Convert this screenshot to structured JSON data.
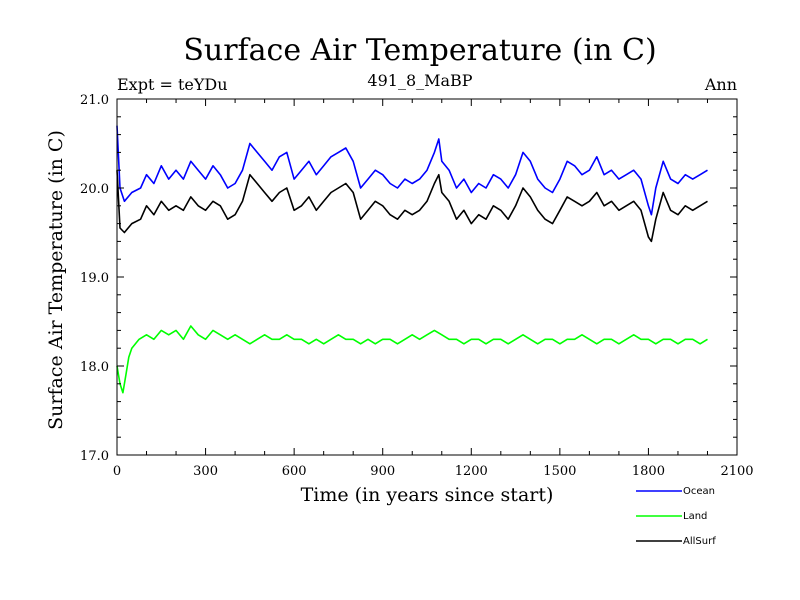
{
  "chart_data": {
    "type": "line",
    "title": "Surface Air Temperature (in C)",
    "subtitle": "491_8_MaBP",
    "left_label": "Expt = teYDu",
    "right_label": "Ann",
    "xlabel": "Time (in years since start)",
    "ylabel": "Surface Air Temperature (in C)",
    "xlim": [
      0,
      2100
    ],
    "ylim": [
      17.0,
      21.0
    ],
    "x_ticks": [
      0,
      300,
      600,
      900,
      1200,
      1500,
      1800,
      2100
    ],
    "x_tick_labels": [
      "0",
      "300",
      "600",
      "900",
      "1200",
      "1500",
      "1800",
      "2100"
    ],
    "y_ticks": [
      17.0,
      18.0,
      19.0,
      20.0,
      21.0
    ],
    "y_tick_labels": [
      "17.0",
      "18.0",
      "19.0",
      "20.0",
      "21.0"
    ],
    "series": [
      {
        "name": "Ocean",
        "color": "#0000ff",
        "x": [
          0,
          10,
          25,
          50,
          80,
          100,
          125,
          150,
          175,
          200,
          225,
          250,
          275,
          300,
          325,
          350,
          375,
          400,
          425,
          450,
          475,
          500,
          525,
          550,
          575,
          600,
          625,
          650,
          675,
          700,
          725,
          750,
          775,
          800,
          825,
          850,
          875,
          900,
          925,
          950,
          975,
          1000,
          1025,
          1050,
          1075,
          1090,
          1100,
          1125,
          1150,
          1175,
          1200,
          1225,
          1250,
          1275,
          1300,
          1325,
          1350,
          1375,
          1400,
          1425,
          1450,
          1475,
          1500,
          1525,
          1550,
          1575,
          1600,
          1625,
          1650,
          1675,
          1700,
          1725,
          1750,
          1775,
          1800,
          1810,
          1825,
          1850,
          1875,
          1900,
          1925,
          1950,
          1975,
          2000
        ],
        "values": [
          20.7,
          20.0,
          19.85,
          19.95,
          20.0,
          20.15,
          20.05,
          20.25,
          20.1,
          20.2,
          20.1,
          20.3,
          20.2,
          20.1,
          20.25,
          20.15,
          20.0,
          20.05,
          20.2,
          20.5,
          20.4,
          20.3,
          20.2,
          20.35,
          20.4,
          20.1,
          20.2,
          20.3,
          20.15,
          20.25,
          20.35,
          20.4,
          20.45,
          20.3,
          20.0,
          20.1,
          20.2,
          20.15,
          20.05,
          20.0,
          20.1,
          20.05,
          20.1,
          20.2,
          20.4,
          20.55,
          20.3,
          20.2,
          20.0,
          20.1,
          19.95,
          20.05,
          20.0,
          20.15,
          20.1,
          20.0,
          20.15,
          20.4,
          20.3,
          20.1,
          20.0,
          19.95,
          20.1,
          20.3,
          20.25,
          20.15,
          20.2,
          20.35,
          20.15,
          20.2,
          20.1,
          20.15,
          20.2,
          20.1,
          19.8,
          19.7,
          20.0,
          20.3,
          20.1,
          20.05,
          20.15,
          20.1,
          20.15,
          20.2
        ]
      },
      {
        "name": "Land",
        "color": "#00ff00",
        "x": [
          0,
          10,
          20,
          30,
          40,
          50,
          75,
          100,
          125,
          150,
          175,
          200,
          225,
          250,
          275,
          300,
          325,
          350,
          375,
          400,
          425,
          450,
          475,
          500,
          525,
          550,
          575,
          600,
          625,
          650,
          675,
          700,
          725,
          750,
          775,
          800,
          825,
          850,
          875,
          900,
          925,
          950,
          975,
          1000,
          1025,
          1050,
          1075,
          1100,
          1125,
          1150,
          1175,
          1200,
          1225,
          1250,
          1275,
          1300,
          1325,
          1350,
          1375,
          1400,
          1425,
          1450,
          1475,
          1500,
          1525,
          1550,
          1575,
          1600,
          1625,
          1650,
          1675,
          1700,
          1725,
          1750,
          1775,
          1800,
          1825,
          1850,
          1875,
          1900,
          1925,
          1950,
          1975,
          2000
        ],
        "values": [
          18.0,
          17.8,
          17.7,
          17.9,
          18.1,
          18.2,
          18.3,
          18.35,
          18.3,
          18.4,
          18.35,
          18.4,
          18.3,
          18.45,
          18.35,
          18.3,
          18.4,
          18.35,
          18.3,
          18.35,
          18.3,
          18.25,
          18.3,
          18.35,
          18.3,
          18.3,
          18.35,
          18.3,
          18.3,
          18.25,
          18.3,
          18.25,
          18.3,
          18.35,
          18.3,
          18.3,
          18.25,
          18.3,
          18.25,
          18.3,
          18.3,
          18.25,
          18.3,
          18.35,
          18.3,
          18.35,
          18.4,
          18.35,
          18.3,
          18.3,
          18.25,
          18.3,
          18.3,
          18.25,
          18.3,
          18.3,
          18.25,
          18.3,
          18.35,
          18.3,
          18.25,
          18.3,
          18.3,
          18.25,
          18.3,
          18.3,
          18.35,
          18.3,
          18.25,
          18.3,
          18.3,
          18.25,
          18.3,
          18.35,
          18.3,
          18.3,
          18.25,
          18.3,
          18.3,
          18.25,
          18.3,
          18.3,
          18.25,
          18.3
        ]
      },
      {
        "name": "AllSurf",
        "color": "#000000",
        "x": [
          0,
          10,
          25,
          50,
          80,
          100,
          125,
          150,
          175,
          200,
          225,
          250,
          275,
          300,
          325,
          350,
          375,
          400,
          425,
          450,
          475,
          500,
          525,
          550,
          575,
          600,
          625,
          650,
          675,
          700,
          725,
          750,
          775,
          800,
          825,
          850,
          875,
          900,
          925,
          950,
          975,
          1000,
          1025,
          1050,
          1075,
          1090,
          1100,
          1125,
          1150,
          1175,
          1200,
          1225,
          1250,
          1275,
          1300,
          1325,
          1350,
          1375,
          1400,
          1425,
          1450,
          1475,
          1500,
          1525,
          1550,
          1575,
          1600,
          1625,
          1650,
          1675,
          1700,
          1725,
          1750,
          1775,
          1800,
          1810,
          1825,
          1850,
          1875,
          1900,
          1925,
          1950,
          1975,
          2000
        ],
        "values": [
          20.2,
          19.55,
          19.5,
          19.6,
          19.65,
          19.8,
          19.7,
          19.85,
          19.75,
          19.8,
          19.75,
          19.9,
          19.8,
          19.75,
          19.85,
          19.8,
          19.65,
          19.7,
          19.85,
          20.15,
          20.05,
          19.95,
          19.85,
          19.95,
          20.0,
          19.75,
          19.8,
          19.9,
          19.75,
          19.85,
          19.95,
          20.0,
          20.05,
          19.95,
          19.65,
          19.75,
          19.85,
          19.8,
          19.7,
          19.65,
          19.75,
          19.7,
          19.75,
          19.85,
          20.05,
          20.15,
          19.95,
          19.85,
          19.65,
          19.75,
          19.6,
          19.7,
          19.65,
          19.8,
          19.75,
          19.65,
          19.8,
          20.0,
          19.9,
          19.75,
          19.65,
          19.6,
          19.75,
          19.9,
          19.85,
          19.8,
          19.85,
          19.95,
          19.8,
          19.85,
          19.75,
          19.8,
          19.85,
          19.75,
          19.45,
          19.4,
          19.65,
          19.95,
          19.75,
          19.7,
          19.8,
          19.75,
          19.8,
          19.85
        ]
      }
    ],
    "legend": {
      "placement": "bottom-right",
      "entries": [
        "Ocean",
        "Land",
        "AllSurf"
      ]
    }
  }
}
